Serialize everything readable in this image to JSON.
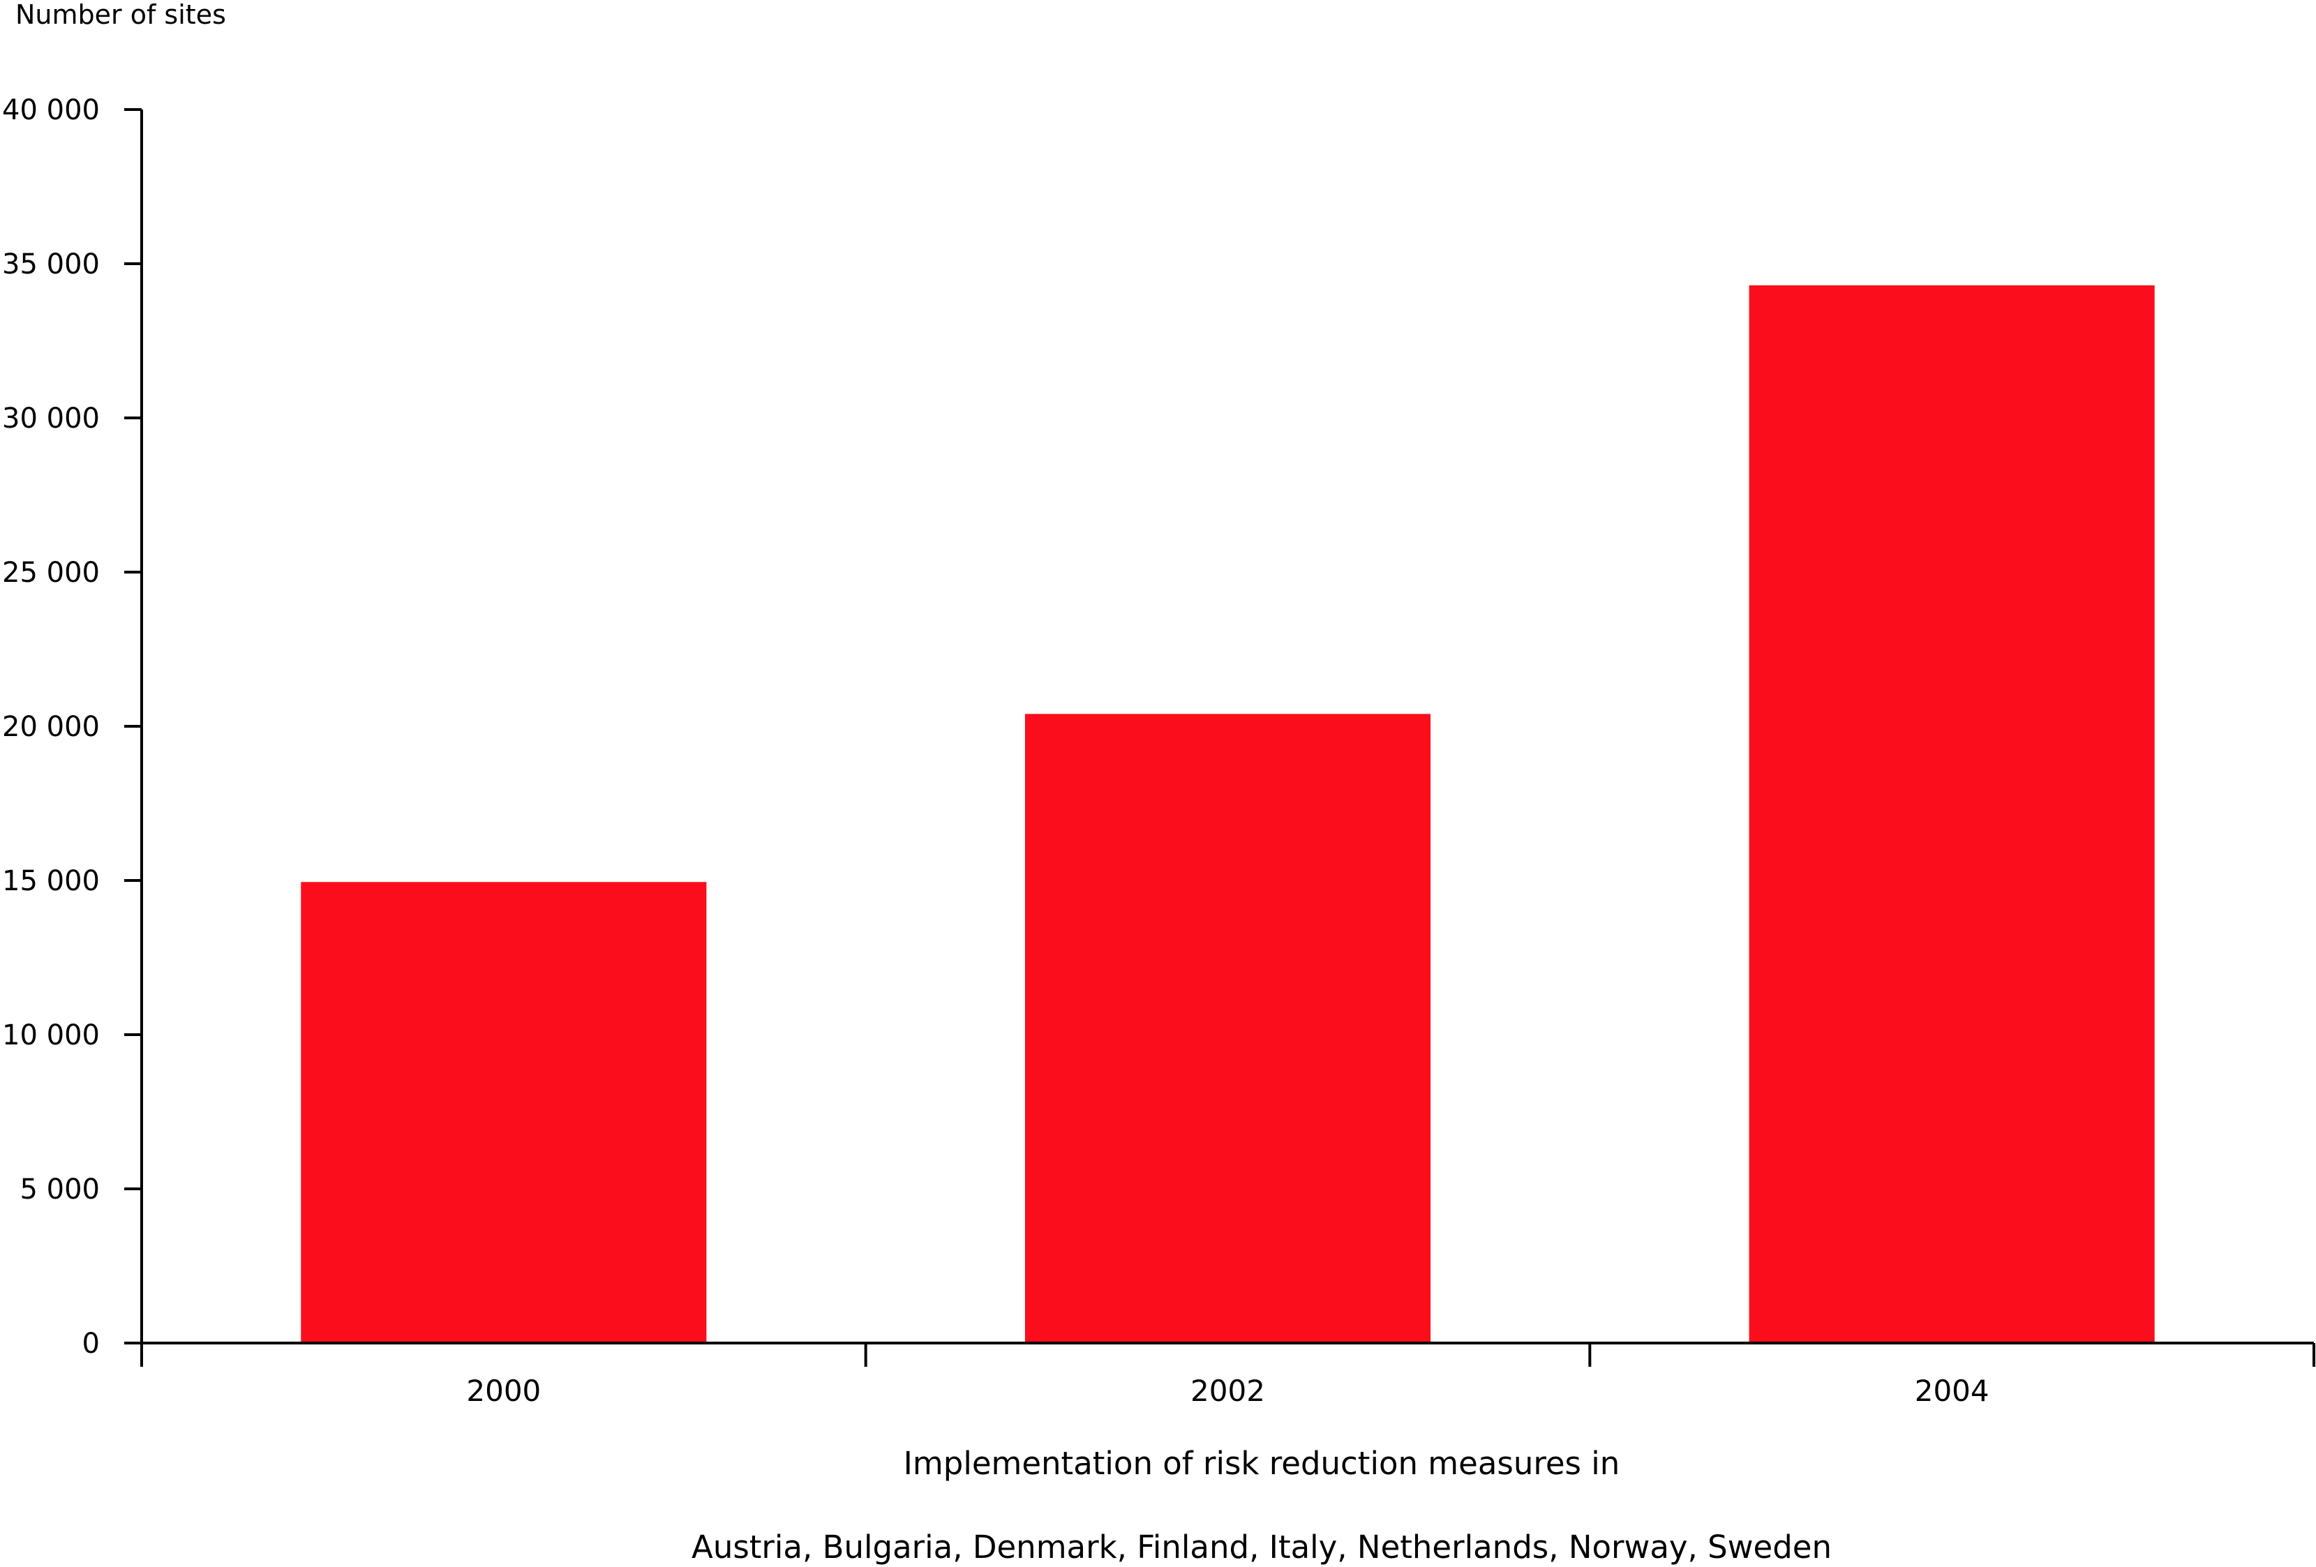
{
  "chart_data": {
    "type": "bar",
    "ylabel": "Number of sites",
    "xlabel_line1": "Implementation of risk reduction measures in",
    "xlabel_line2": "Austria, Bulgaria, Denmark, Finland, Italy, Netherlands, Norway, Sweden",
    "categories": [
      "2000",
      "2002",
      "2004"
    ],
    "values": [
      14950,
      20400,
      34300
    ],
    "ylim": [
      0,
      40000
    ],
    "y_ticks": [
      0,
      5000,
      10000,
      15000,
      20000,
      25000,
      30000,
      35000,
      40000
    ],
    "y_tick_labels": [
      "0",
      "5 000",
      "10 000",
      "15 000",
      "20 000",
      "25 000",
      "30 000",
      "35 000",
      "40 000"
    ],
    "bar_color": "#fc0d1b",
    "grid": false,
    "legend": "none"
  }
}
